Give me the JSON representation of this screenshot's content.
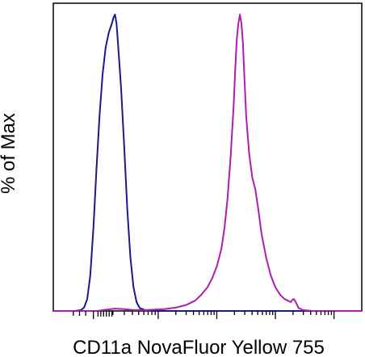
{
  "chart_data": {
    "type": "line",
    "xlabel": "CD11a NovaFluor Yellow 755",
    "ylabel": "% of Max",
    "x_scale": "biexponential",
    "x_tick_labels": [],
    "y_tick_labels": [],
    "grid": false,
    "legend": "none",
    "xlim": [
      0,
      1
    ],
    "ylim": [
      0,
      100
    ],
    "series": [
      {
        "color": "#1a1a8c",
        "points": [
          [
            0.07,
            0
          ],
          [
            0.09,
            0.3
          ],
          [
            0.1,
            1.2
          ],
          [
            0.11,
            4
          ],
          [
            0.12,
            12
          ],
          [
            0.13,
            28
          ],
          [
            0.14,
            48
          ],
          [
            0.15,
            66
          ],
          [
            0.16,
            80
          ],
          [
            0.17,
            89
          ],
          [
            0.18,
            94
          ],
          [
            0.19,
            97
          ],
          [
            0.195,
            99
          ],
          [
            0.2,
            100
          ],
          [
            0.205,
            97
          ],
          [
            0.21,
            90
          ],
          [
            0.22,
            75
          ],
          [
            0.23,
            55
          ],
          [
            0.24,
            34
          ],
          [
            0.25,
            18
          ],
          [
            0.26,
            8
          ],
          [
            0.27,
            3
          ],
          [
            0.28,
            1
          ],
          [
            0.3,
            0.2
          ],
          [
            0.33,
            0
          ],
          [
            1.0,
            0
          ]
        ]
      },
      {
        "color": "#b01cb0",
        "points": [
          [
            0.0,
            0
          ],
          [
            0.14,
            0
          ],
          [
            0.17,
            0.4
          ],
          [
            0.2,
            0.8
          ],
          [
            0.23,
            0.6
          ],
          [
            0.26,
            0.3
          ],
          [
            0.3,
            0.3
          ],
          [
            0.36,
            0.6
          ],
          [
            0.4,
            1.2
          ],
          [
            0.43,
            2
          ],
          [
            0.46,
            3.5
          ],
          [
            0.48,
            5.5
          ],
          [
            0.5,
            8
          ],
          [
            0.515,
            11
          ],
          [
            0.53,
            15
          ],
          [
            0.545,
            21
          ],
          [
            0.555,
            28
          ],
          [
            0.565,
            38
          ],
          [
            0.575,
            52
          ],
          [
            0.585,
            70
          ],
          [
            0.59,
            82
          ],
          [
            0.595,
            92
          ],
          [
            0.6,
            97
          ],
          [
            0.605,
            100
          ],
          [
            0.61,
            97
          ],
          [
            0.615,
            90
          ],
          [
            0.62,
            78
          ],
          [
            0.625,
            66
          ],
          [
            0.635,
            53
          ],
          [
            0.645,
            45
          ],
          [
            0.655,
            41
          ],
          [
            0.665,
            34
          ],
          [
            0.675,
            26
          ],
          [
            0.69,
            18
          ],
          [
            0.705,
            12
          ],
          [
            0.72,
            8
          ],
          [
            0.735,
            5.5
          ],
          [
            0.75,
            4
          ],
          [
            0.76,
            3.5
          ],
          [
            0.77,
            3
          ],
          [
            0.775,
            3.8
          ],
          [
            0.78,
            4
          ],
          [
            0.787,
            2.8
          ],
          [
            0.795,
            1
          ],
          [
            0.81,
            0.3
          ],
          [
            0.84,
            0
          ],
          [
            1.0,
            0
          ]
        ]
      }
    ]
  }
}
